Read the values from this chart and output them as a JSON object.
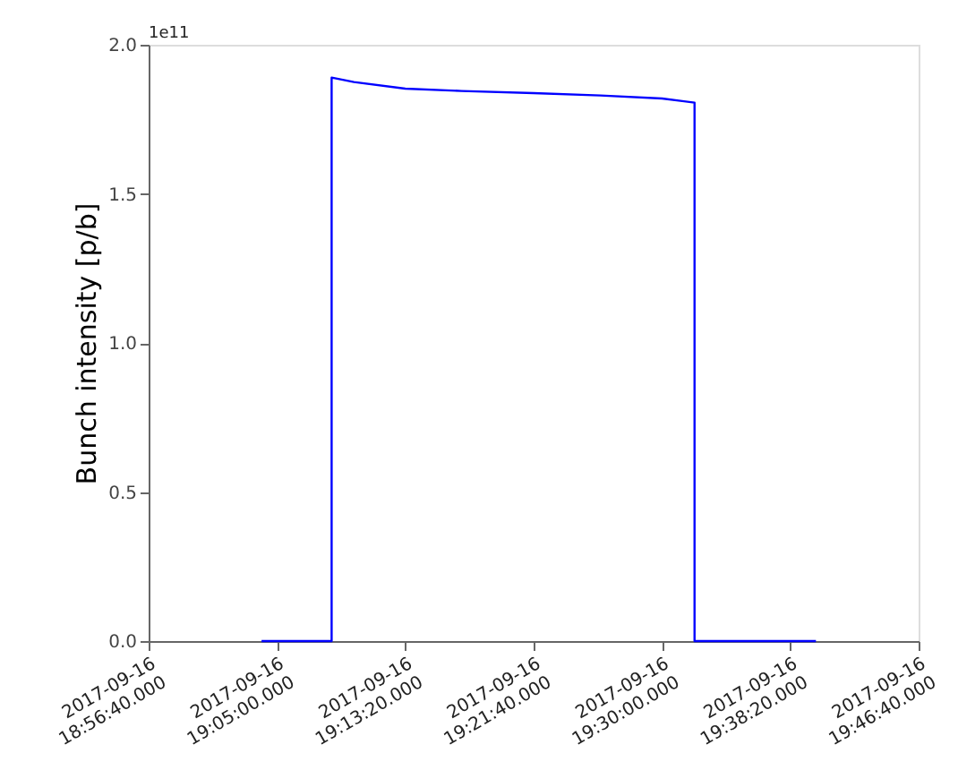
{
  "chart_data": {
    "type": "line",
    "ylabel": "Bunch intensity [p/b]",
    "annotations": [
      "1e11"
    ],
    "x": [
      "2017-09-16T19:04:00",
      "2017-09-16T19:08:33",
      "2017-09-16T19:08:33",
      "2017-09-16T19:10:00",
      "2017-09-16T19:13:20",
      "2017-09-16T19:17:00",
      "2017-09-16T19:21:40",
      "2017-09-16T19:26:00",
      "2017-09-16T19:30:00",
      "2017-09-16T19:32:07",
      "2017-09-16T19:32:07",
      "2017-09-16T19:40:00"
    ],
    "series": [
      {
        "color": "#0000ff",
        "values": [
          0,
          0,
          1.89,
          1.875,
          1.853,
          1.845,
          1.838,
          1.83,
          1.82,
          1.806,
          0,
          0
        ]
      }
    ],
    "xlim": [
      "2017-09-16T18:56:40",
      "2017-09-16T19:46:40"
    ],
    "xticks": [
      {
        "value": "2017-09-16T18:56:40",
        "label": "2017-09-16\n18:56:40.000"
      },
      {
        "value": "2017-09-16T19:05:00",
        "label": "2017-09-16\n19:05:00.000"
      },
      {
        "value": "2017-09-16T19:13:20",
        "label": "2017-09-16\n19:13:20.000"
      },
      {
        "value": "2017-09-16T19:21:40",
        "label": "2017-09-16\n19:21:40.000"
      },
      {
        "value": "2017-09-16T19:30:00",
        "label": "2017-09-16\n19:30:00.000"
      },
      {
        "value": "2017-09-16T19:38:20",
        "label": "2017-09-16\n19:38:20.000"
      },
      {
        "value": "2017-09-16T19:46:40",
        "label": "2017-09-16\n19:46:40.000"
      }
    ],
    "ylim": [
      0,
      2.0
    ],
    "yticks": [
      {
        "value": 0,
        "label": "0.0"
      },
      {
        "value": 0.5,
        "label": "0.5"
      },
      {
        "value": 1.0,
        "label": "1.0"
      },
      {
        "value": 1.5,
        "label": "1.5"
      },
      {
        "value": 2.0,
        "label": "2.0"
      }
    ],
    "grid": false,
    "marker": "none",
    "line_style": "solid"
  }
}
